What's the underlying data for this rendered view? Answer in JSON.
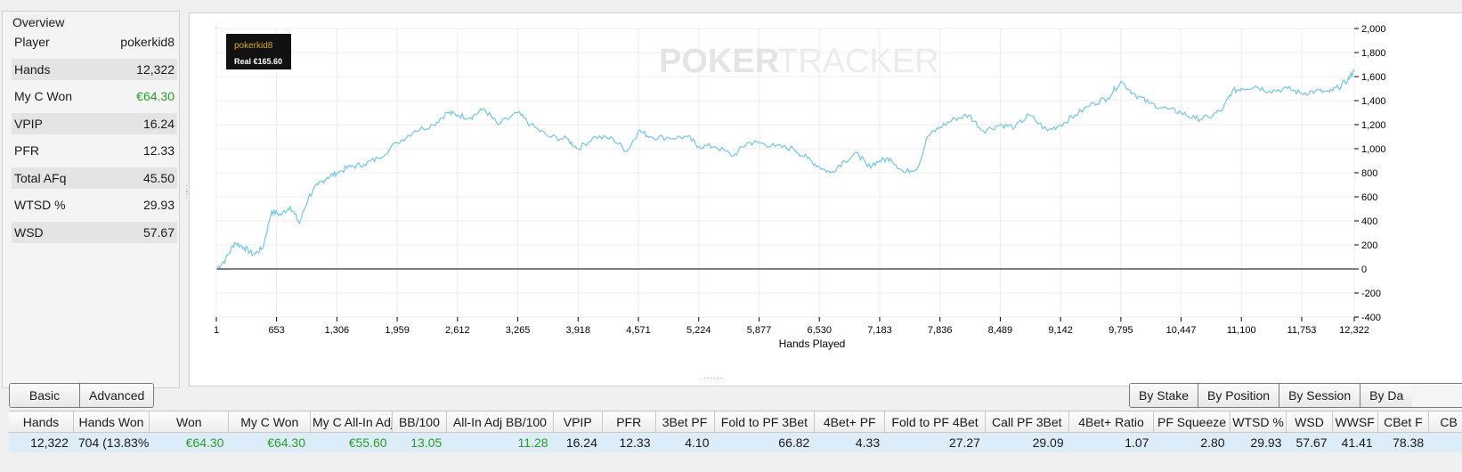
{
  "overview": {
    "title": "Overview",
    "rows": [
      {
        "label": "Player",
        "value": "pokerkid8"
      },
      {
        "label": "Hands",
        "value": "12,322"
      },
      {
        "label": "My C Won",
        "value": "€64.30"
      },
      {
        "label": "VPIP",
        "value": "16.24"
      },
      {
        "label": "PFR",
        "value": "12.33"
      },
      {
        "label": "Total AFq",
        "value": "45.50"
      },
      {
        "label": "WTSD %",
        "value": "29.93"
      },
      {
        "label": "WSD",
        "value": "57.67"
      }
    ]
  },
  "chart": {
    "watermark_bold": "POKER",
    "watermark_light": "TRACKER",
    "legend_player": "pokerkid8",
    "legend_value": "Real €165.60",
    "colors": {
      "line": "#7ec8e3",
      "zero_line": "#000000",
      "green": "#2a9d2a",
      "legend_gold": "#e8a317"
    }
  },
  "chart_data": {
    "type": "line",
    "xlabel": "Hands Played",
    "ylabel": "",
    "x_ticks": [
      "1",
      "653",
      "1,306",
      "1,959",
      "2,612",
      "3,265",
      "3,918",
      "4,571",
      "5,224",
      "5,877",
      "6,530",
      "7,183",
      "7,836",
      "8,489",
      "9,142",
      "9,795",
      "10,447",
      "11,100",
      "11,753",
      "12,322"
    ],
    "y_ticks": [
      "2,000",
      "1,800",
      "1,600",
      "1,400",
      "1,200",
      "1,000",
      "800",
      "600",
      "400",
      "200",
      "0",
      "-200",
      "-400"
    ],
    "xlim": [
      1,
      12322
    ],
    "ylim": [
      -400,
      2000
    ],
    "grid": true,
    "series": [
      {
        "name": "pokerkid8",
        "x": [
          1,
          100,
          200,
          300,
          400,
          500,
          600,
          700,
          800,
          900,
          1000,
          1100,
          1200,
          1306,
          1450,
          1600,
          1750,
          1959,
          2150,
          2350,
          2500,
          2612,
          2750,
          2900,
          3050,
          3265,
          3400,
          3600,
          3800,
          3918,
          4100,
          4300,
          4450,
          4571,
          4700,
          4900,
          5100,
          5224,
          5400,
          5600,
          5750,
          5877,
          6050,
          6250,
          6400,
          6530,
          6650,
          6800,
          6950,
          7050,
          7183,
          7300,
          7450,
          7600,
          7700,
          7836,
          8000,
          8150,
          8300,
          8489,
          8650,
          8800,
          9000,
          9142,
          9300,
          9500,
          9650,
          9795,
          9950,
          10100,
          10300,
          10447,
          10600,
          10750,
          10900,
          11000,
          11100,
          11250,
          11400,
          11600,
          11753,
          11900,
          12050,
          12150,
          12250,
          12322
        ],
        "y": [
          0,
          80,
          220,
          180,
          120,
          170,
          480,
          450,
          520,
          380,
          600,
          700,
          760,
          800,
          850,
          870,
          920,
          1050,
          1150,
          1200,
          1300,
          1280,
          1260,
          1330,
          1200,
          1300,
          1200,
          1100,
          1080,
          1000,
          1100,
          1080,
          980,
          1150,
          1100,
          1090,
          1100,
          1020,
          1020,
          940,
          1050,
          1050,
          1020,
          1000,
          920,
          850,
          800,
          900,
          960,
          850,
          900,
          920,
          800,
          850,
          1100,
          1180,
          1250,
          1280,
          1150,
          1200,
          1180,
          1280,
          1150,
          1200,
          1280,
          1380,
          1420,
          1560,
          1450,
          1380,
          1330,
          1300,
          1250,
          1260,
          1330,
          1480,
          1500,
          1520,
          1480,
          1500,
          1460,
          1480,
          1470,
          1510,
          1570,
          1650
        ]
      }
    ]
  },
  "bottom": {
    "left_tabs": [
      "Basic",
      "Advanced"
    ],
    "right_tabs": [
      "By Stake",
      "By Position",
      "By Session",
      "By Da"
    ],
    "columns": [
      "Hands",
      "Hands Won",
      "Won",
      "My C Won",
      "My C All-In Adj",
      "BB/100",
      "All-In Adj BB/100",
      "VPIP",
      "PFR",
      "3Bet PF",
      "Fold to PF 3Bet",
      "4Bet+ PF",
      "Fold to PF 4Bet",
      "Call PF 3Bet",
      "4Bet+ Ratio",
      "PF Squeeze",
      "WTSD %",
      "WSD",
      "WWSF",
      "CBet F",
      "CB"
    ],
    "row": [
      "12,322",
      "704 (13.83%)",
      "€64.30",
      "€64.30",
      "€55.60",
      "13.05",
      "11.28",
      "16.24",
      "12.33",
      "4.10",
      "66.82",
      "4.33",
      "27.27",
      "29.09",
      "1.07",
      "2.80",
      "29.93",
      "57.67",
      "41.41",
      "78.38",
      ""
    ]
  }
}
